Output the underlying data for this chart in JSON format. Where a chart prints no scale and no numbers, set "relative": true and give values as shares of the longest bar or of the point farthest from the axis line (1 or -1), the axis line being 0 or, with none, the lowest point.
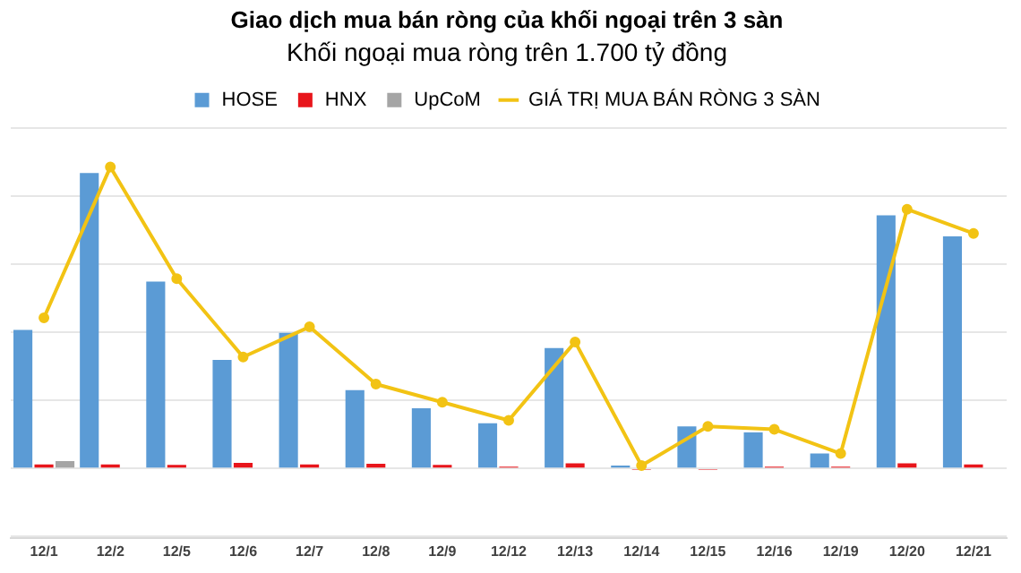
{
  "chart_data": {
    "type": "bar",
    "title": "Giao dịch mua bán ròng của khối ngoại trên 3 sàn",
    "subtitle": "Khối ngoại mua ròng trên 1.700 tỷ đồng",
    "relative": true,
    "grid": "y",
    "legend": "top",
    "categories": [
      "12/1",
      "12/2",
      "12/5",
      "12/6",
      "12/7",
      "12/8",
      "12/9",
      "12/12",
      "12/13",
      "12/14",
      "12/15",
      "12/16",
      "12/19",
      "12/20",
      "12/21"
    ],
    "series": [
      {
        "name": "HOSE",
        "color": "#5b9bd5",
        "values": [
          0.46,
          0.98,
          0.62,
          0.36,
          0.45,
          0.26,
          0.2,
          0.15,
          0.4,
          0.01,
          0.14,
          0.12,
          0.05,
          0.84,
          0.77
        ]
      },
      {
        "name": "HNX",
        "color": "#e8151b",
        "values": [
          0.014,
          0.014,
          0.012,
          0.019,
          0.014,
          0.016,
          0.012,
          0.006,
          0.017,
          -0.004,
          -0.004,
          0.006,
          0.006,
          0.017,
          0.014
        ]
      },
      {
        "name": "UpCoM",
        "color": "#a5a5a5",
        "values": [
          0.025,
          0,
          0,
          0,
          0,
          0,
          0,
          0,
          0,
          0,
          0,
          0,
          0,
          0,
          0
        ]
      },
      {
        "name": "GIÁ TRỊ MUA BÁN RÒNG 3 SÀN",
        "type": "line",
        "color": "#f2c314",
        "marker": "circle",
        "values": [
          0.5,
          1,
          0.63,
          0.37,
          0.47,
          0.28,
          0.22,
          0.16,
          0.42,
          0.01,
          0.14,
          0.13,
          0.05,
          0.86,
          0.78
        ]
      }
    ]
  }
}
